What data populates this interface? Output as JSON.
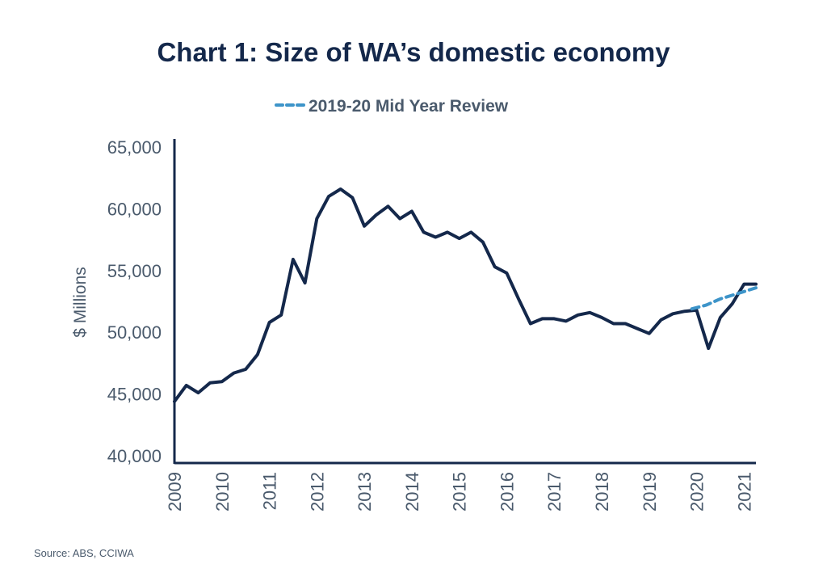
{
  "chart_data": {
    "type": "line",
    "title": "Chart 1: Size of WA’s domestic economy",
    "ylabel": "$ Millions",
    "xlabel": "",
    "source": "Source: ABS, CCIWA",
    "ylim": [
      40000,
      65000
    ],
    "y_ticks": [
      40000,
      45000,
      50000,
      55000,
      60000,
      65000
    ],
    "y_tick_labels": [
      "40,000",
      "45,000",
      "50,000",
      "55,000",
      "60,000",
      "65,000"
    ],
    "x_tick_labels": [
      "2009",
      "2010",
      "2011",
      "2012",
      "2013",
      "2014",
      "2015",
      "2016",
      "2017",
      "2018",
      "2019",
      "2020",
      "2021"
    ],
    "xlim": [
      2009.0,
      2021.25
    ],
    "grid": false,
    "legend": "top-center",
    "colors": {
      "actual": "#14284b",
      "forecast": "#3d94c9",
      "axis": "#14284b",
      "text": "#4a5a6c"
    },
    "series": [
      {
        "x": [
          2009.0,
          2009.25,
          2009.5,
          2009.75,
          2010.0,
          2010.25,
          2010.5,
          2010.75,
          2011.0,
          2011.25,
          2011.5,
          2011.75,
          2012.0,
          2012.25,
          2012.5,
          2012.75,
          2013.0,
          2013.25,
          2013.5,
          2013.75,
          2014.0,
          2014.25,
          2014.5,
          2014.75,
          2015.0,
          2015.25,
          2015.5,
          2015.75,
          2016.0,
          2016.25,
          2016.5,
          2016.75,
          2017.0,
          2017.25,
          2017.5,
          2017.75,
          2018.0,
          2018.25,
          2018.5,
          2018.75,
          2019.0,
          2019.25,
          2019.5,
          2019.75,
          2020.0,
          2020.25,
          2020.5,
          2020.75,
          2021.0,
          2021.25
        ],
        "values": [
          44400,
          45700,
          45100,
          45900,
          46000,
          46700,
          47000,
          48200,
          50800,
          51400,
          55900,
          54000,
          59200,
          61000,
          61600,
          60900,
          58600,
          59500,
          60200,
          59200,
          59800,
          58100,
          57700,
          58100,
          57600,
          58100,
          57300,
          55300,
          54800,
          52700,
          50700,
          51100,
          51100,
          50900,
          51400,
          51600,
          51200,
          50700,
          50700,
          50300,
          49900,
          51000,
          51500,
          51700,
          51800,
          48700,
          51200,
          52300,
          53900,
          53900
        ]
      },
      {
        "name": "2019-20 Mid Year Review",
        "x": [
          2019.9,
          2020.2,
          2020.5,
          2020.75,
          2021.0,
          2021.25
        ],
        "values": [
          51900,
          52200,
          52700,
          53000,
          53300,
          53600
        ]
      }
    ]
  }
}
